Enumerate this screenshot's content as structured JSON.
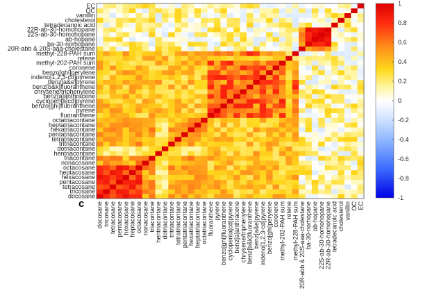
{
  "chart_data": {
    "type": "heatmap",
    "title": "",
    "panel_label": "c",
    "labels": [
      "docosane",
      "tricosane",
      "tetracosane",
      "pentacosane",
      "hexacosane",
      "heptacosane",
      "octacosane",
      "nonacosane",
      "triacontane",
      "hentriacontane",
      "dotriacontane",
      "tritriacontane",
      "tetratriacontane",
      "pentatriacontane",
      "hexatriacontane",
      "heptatriacontane",
      "octatriacontane",
      "fluoranthene",
      "pyrene",
      "benzo[ghi]fluoranthene",
      "cyclopenta[cd]pyrene",
      "benz[a]anthracene",
      "chrysene/triphenylene",
      "benz[b&k]fluoranthene",
      "benz[a&e]pyrene",
      "indeno[1,2,3-cd]pyrene",
      "benzo[ghi]perylene",
      "coronene",
      "methyl-202-PAH sum",
      "retene",
      "methyl-228-PAH sum",
      "20R-abb & 20S-aaa-cholestane",
      "ba-30-norhopane",
      "ab-hopane",
      "22S-ab-30-homohopane",
      "22R-ab-30-homohopane",
      "tetradecanoic acid",
      "cholesterol",
      "vanillin",
      "OC",
      "EC"
    ],
    "colorbar": {
      "min": -1,
      "max": 1,
      "ticks": [
        "1",
        "0.8",
        "0.6",
        "0.4",
        "0.2",
        "0",
        "-0.2",
        "-0.4",
        "-0.6",
        "-0.8",
        "-1"
      ]
    },
    "colormap": "blue-white-red (jet-like, white at 0)",
    "diagonal_value": 1,
    "value_range_note": "mostly 0.1 to 0.7 positive correlations; alkane block and PAH block 0.6-0.9; hopane block 0.8-0.95"
  }
}
